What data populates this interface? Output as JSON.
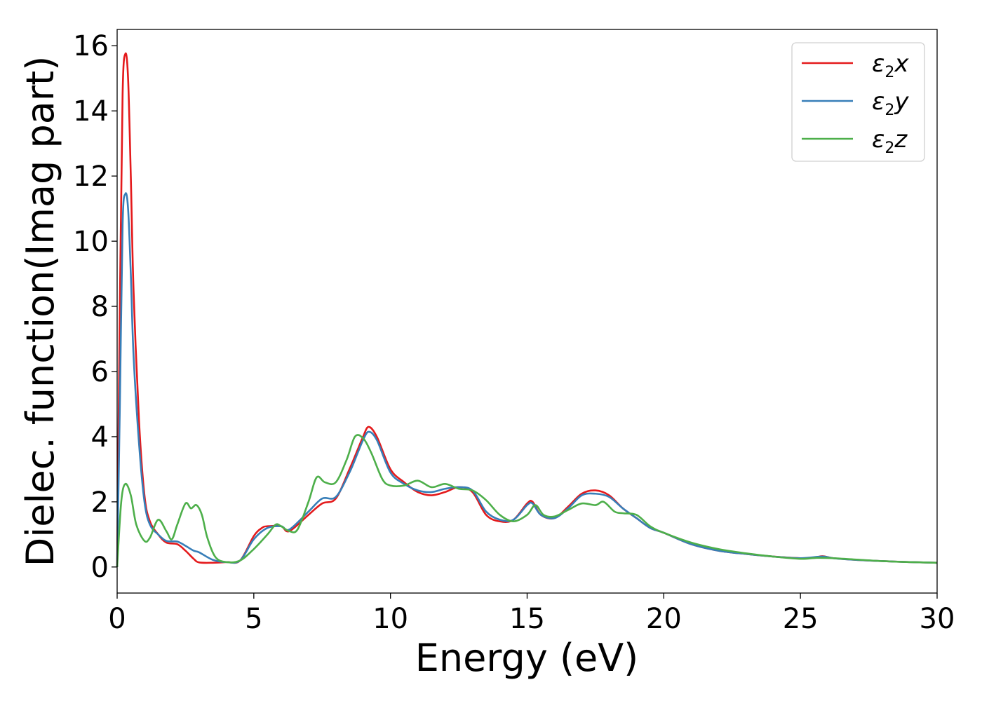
{
  "chart_data": {
    "type": "line",
    "xlabel": "Energy (eV)",
    "ylabel": "Dielec. function(Imag part)",
    "xlim": [
      0,
      30
    ],
    "ylim": [
      -0.8,
      16.5
    ],
    "xticks": [
      "0",
      "5",
      "10",
      "15",
      "20",
      "25",
      "30"
    ],
    "yticks": [
      "0",
      "2",
      "4",
      "6",
      "8",
      "10",
      "12",
      "14",
      "16"
    ],
    "grid": false,
    "legend_position": "top-right",
    "series": [
      {
        "name": "ε₂x",
        "label_base": "ε",
        "label_sub": "2",
        "label_var": "x",
        "color": "#e41a1c",
        "points": [
          [
            0,
            0
          ],
          [
            0.1,
            8
          ],
          [
            0.2,
            14.5
          ],
          [
            0.3,
            15.75
          ],
          [
            0.4,
            15
          ],
          [
            0.5,
            12
          ],
          [
            0.6,
            8.5
          ],
          [
            0.8,
            4.5
          ],
          [
            1.0,
            2.2
          ],
          [
            1.2,
            1.4
          ],
          [
            1.5,
            1.0
          ],
          [
            1.8,
            0.75
          ],
          [
            2.2,
            0.7
          ],
          [
            2.5,
            0.5
          ],
          [
            2.8,
            0.25
          ],
          [
            3.0,
            0.14
          ],
          [
            3.5,
            0.13
          ],
          [
            4.0,
            0.15
          ],
          [
            4.5,
            0.2
          ],
          [
            5.0,
            0.95
          ],
          [
            5.3,
            1.2
          ],
          [
            5.5,
            1.25
          ],
          [
            6.0,
            1.25
          ],
          [
            6.3,
            1.1
          ],
          [
            7.0,
            1.6
          ],
          [
            7.5,
            1.95
          ],
          [
            8.0,
            2.1
          ],
          [
            8.5,
            3.0
          ],
          [
            8.8,
            3.6
          ],
          [
            9.0,
            4.0
          ],
          [
            9.2,
            4.3
          ],
          [
            9.5,
            4.0
          ],
          [
            10.0,
            3.0
          ],
          [
            10.5,
            2.6
          ],
          [
            11.0,
            2.3
          ],
          [
            11.5,
            2.2
          ],
          [
            12.0,
            2.3
          ],
          [
            12.5,
            2.45
          ],
          [
            13.0,
            2.3
          ],
          [
            13.5,
            1.6
          ],
          [
            14.0,
            1.4
          ],
          [
            14.5,
            1.45
          ],
          [
            15.0,
            1.95
          ],
          [
            15.2,
            2.0
          ],
          [
            15.5,
            1.6
          ],
          [
            16.0,
            1.5
          ],
          [
            16.5,
            1.85
          ],
          [
            17.0,
            2.25
          ],
          [
            17.5,
            2.35
          ],
          [
            18.0,
            2.2
          ],
          [
            18.5,
            1.8
          ],
          [
            19.0,
            1.5
          ],
          [
            19.5,
            1.2
          ],
          [
            20.0,
            1.05
          ],
          [
            21.0,
            0.7
          ],
          [
            22.0,
            0.5
          ],
          [
            23.0,
            0.4
          ],
          [
            24.0,
            0.32
          ],
          [
            25.0,
            0.27
          ],
          [
            25.5,
            0.28
          ],
          [
            25.8,
            0.33
          ],
          [
            26.2,
            0.27
          ],
          [
            27.0,
            0.22
          ],
          [
            28.0,
            0.18
          ],
          [
            29.0,
            0.15
          ],
          [
            30.0,
            0.13
          ]
        ]
      },
      {
        "name": "ε₂y",
        "label_base": "ε",
        "label_sub": "2",
        "label_var": "y",
        "color": "#377eb8",
        "points": [
          [
            0,
            0
          ],
          [
            0.1,
            5
          ],
          [
            0.2,
            10.5
          ],
          [
            0.3,
            11.45
          ],
          [
            0.4,
            11
          ],
          [
            0.5,
            9
          ],
          [
            0.6,
            6.5
          ],
          [
            0.8,
            3.8
          ],
          [
            1.0,
            2.0
          ],
          [
            1.2,
            1.3
          ],
          [
            1.5,
            1.0
          ],
          [
            1.8,
            0.8
          ],
          [
            2.2,
            0.78
          ],
          [
            2.5,
            0.65
          ],
          [
            2.8,
            0.5
          ],
          [
            3.0,
            0.45
          ],
          [
            3.5,
            0.22
          ],
          [
            4.0,
            0.15
          ],
          [
            4.5,
            0.2
          ],
          [
            5.0,
            0.85
          ],
          [
            5.5,
            1.2
          ],
          [
            6.0,
            1.25
          ],
          [
            6.3,
            1.15
          ],
          [
            7.0,
            1.7
          ],
          [
            7.5,
            2.1
          ],
          [
            8.0,
            2.15
          ],
          [
            8.5,
            2.9
          ],
          [
            8.8,
            3.5
          ],
          [
            9.0,
            3.9
          ],
          [
            9.2,
            4.15
          ],
          [
            9.5,
            3.9
          ],
          [
            10.0,
            2.9
          ],
          [
            10.5,
            2.55
          ],
          [
            11.0,
            2.35
          ],
          [
            11.5,
            2.3
          ],
          [
            12.0,
            2.4
          ],
          [
            12.5,
            2.45
          ],
          [
            13.0,
            2.35
          ],
          [
            13.5,
            1.7
          ],
          [
            14.0,
            1.45
          ],
          [
            14.5,
            1.45
          ],
          [
            15.0,
            1.9
          ],
          [
            15.2,
            1.95
          ],
          [
            15.5,
            1.6
          ],
          [
            16.0,
            1.5
          ],
          [
            16.5,
            1.8
          ],
          [
            17.0,
            2.2
          ],
          [
            17.5,
            2.25
          ],
          [
            18.0,
            2.15
          ],
          [
            18.5,
            1.8
          ],
          [
            19.0,
            1.5
          ],
          [
            19.5,
            1.2
          ],
          [
            20.0,
            1.05
          ],
          [
            21.0,
            0.7
          ],
          [
            22.0,
            0.5
          ],
          [
            23.0,
            0.4
          ],
          [
            24.0,
            0.32
          ],
          [
            25.0,
            0.27
          ],
          [
            25.8,
            0.32
          ],
          [
            26.2,
            0.27
          ],
          [
            27.0,
            0.22
          ],
          [
            28.0,
            0.18
          ],
          [
            29.0,
            0.15
          ],
          [
            30.0,
            0.13
          ]
        ]
      },
      {
        "name": "ε₂z",
        "label_base": "ε",
        "label_sub": "2",
        "label_var": "z",
        "color": "#4daf4a",
        "points": [
          [
            0,
            0
          ],
          [
            0.15,
            2.0
          ],
          [
            0.3,
            2.55
          ],
          [
            0.5,
            2.2
          ],
          [
            0.7,
            1.3
          ],
          [
            1.0,
            0.8
          ],
          [
            1.2,
            0.9
          ],
          [
            1.5,
            1.45
          ],
          [
            1.8,
            1.1
          ],
          [
            2.0,
            0.85
          ],
          [
            2.2,
            1.3
          ],
          [
            2.5,
            1.95
          ],
          [
            2.7,
            1.8
          ],
          [
            2.9,
            1.9
          ],
          [
            3.1,
            1.6
          ],
          [
            3.3,
            0.9
          ],
          [
            3.6,
            0.3
          ],
          [
            4.0,
            0.15
          ],
          [
            4.5,
            0.2
          ],
          [
            5.0,
            0.55
          ],
          [
            5.5,
            1.0
          ],
          [
            5.8,
            1.3
          ],
          [
            6.0,
            1.25
          ],
          [
            6.3,
            1.1
          ],
          [
            6.6,
            1.15
          ],
          [
            7.0,
            2.0
          ],
          [
            7.3,
            2.75
          ],
          [
            7.6,
            2.6
          ],
          [
            8.0,
            2.6
          ],
          [
            8.4,
            3.3
          ],
          [
            8.7,
            4.0
          ],
          [
            9.0,
            3.95
          ],
          [
            9.3,
            3.5
          ],
          [
            9.7,
            2.7
          ],
          [
            10.0,
            2.5
          ],
          [
            10.5,
            2.5
          ],
          [
            11.0,
            2.65
          ],
          [
            11.5,
            2.45
          ],
          [
            12.0,
            2.55
          ],
          [
            12.5,
            2.4
          ],
          [
            13.0,
            2.35
          ],
          [
            13.5,
            2.05
          ],
          [
            14.0,
            1.6
          ],
          [
            14.5,
            1.4
          ],
          [
            15.0,
            1.6
          ],
          [
            15.3,
            1.9
          ],
          [
            15.6,
            1.6
          ],
          [
            16.0,
            1.55
          ],
          [
            16.5,
            1.75
          ],
          [
            17.0,
            1.95
          ],
          [
            17.5,
            1.9
          ],
          [
            17.8,
            2.0
          ],
          [
            18.2,
            1.7
          ],
          [
            18.5,
            1.65
          ],
          [
            19.0,
            1.6
          ],
          [
            19.5,
            1.25
          ],
          [
            20.0,
            1.05
          ],
          [
            21.0,
            0.75
          ],
          [
            22.0,
            0.55
          ],
          [
            23.0,
            0.42
          ],
          [
            24.0,
            0.32
          ],
          [
            25.0,
            0.25
          ],
          [
            25.6,
            0.28
          ],
          [
            26.2,
            0.27
          ],
          [
            27.0,
            0.23
          ],
          [
            28.0,
            0.18
          ],
          [
            29.0,
            0.15
          ],
          [
            30.0,
            0.13
          ]
        ]
      }
    ]
  }
}
